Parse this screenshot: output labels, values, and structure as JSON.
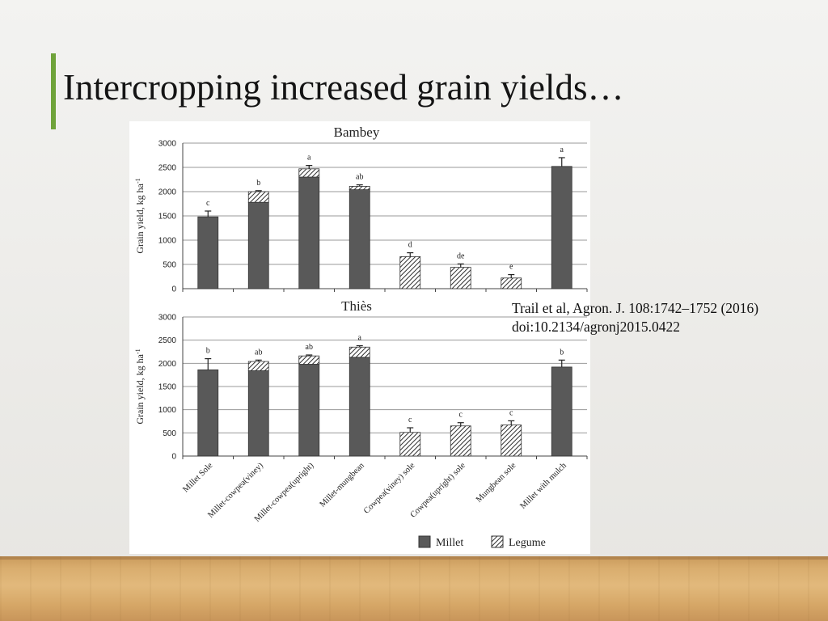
{
  "slide": {
    "title": "Intercropping increased grain yields…",
    "citation_line1": "Trail et al, Agron. J. 108:1742–1752 (2016)",
    "citation_line2": "doi:10.2134/agronj2015.0422",
    "accent_color": "#6fa33a"
  },
  "chart_data": [
    {
      "type": "bar",
      "stacked": true,
      "title": "Bambey",
      "ylabel": "Grain yield, kg ha-1",
      "ylim": [
        0,
        3000
      ],
      "yticks": [
        0,
        500,
        1000,
        1500,
        2000,
        2500,
        3000
      ],
      "grid": true,
      "categories": [
        "Millet Sole",
        "Millet-cowpea(viney)",
        "Millet-cowpea(upright)",
        "Millet-mungbean",
        "Cowpea(viney) sole",
        "Cowpea(upright) sole",
        "Mungbean sole",
        "Millet with mulch"
      ],
      "series": [
        {
          "name": "Millet",
          "values": [
            1480,
            1780,
            2300,
            2040,
            0,
            0,
            0,
            2520
          ]
        },
        {
          "name": "Legume",
          "values": [
            0,
            220,
            170,
            70,
            660,
            440,
            220,
            0
          ]
        }
      ],
      "error": [
        120,
        20,
        70,
        30,
        80,
        70,
        70,
        180
      ],
      "letters": [
        "c",
        "b",
        "a",
        "ab",
        "d",
        "de",
        "e",
        "a"
      ]
    },
    {
      "type": "bar",
      "stacked": true,
      "title": "Thiès",
      "ylabel": "Grain yield, kg ha-1",
      "ylim": [
        0,
        3000
      ],
      "yticks": [
        0,
        500,
        1000,
        1500,
        2000,
        2500,
        3000
      ],
      "grid": true,
      "categories": [
        "Millet Sole",
        "Millet-cowpea(viney)",
        "Millet-cowpea(upright)",
        "Millet-mungbean",
        "Cowpea(viney) sole",
        "Cowpea(upright) sole",
        "Mungbean sole",
        "Millet with mulch"
      ],
      "series": [
        {
          "name": "Millet",
          "values": [
            1860,
            1840,
            1980,
            2130,
            0,
            0,
            0,
            1920
          ]
        },
        {
          "name": "Legume",
          "values": [
            0,
            200,
            180,
            220,
            510,
            650,
            670,
            0
          ]
        }
      ],
      "error": [
        240,
        30,
        20,
        30,
        100,
        70,
        90,
        150
      ],
      "letters": [
        "b",
        "ab",
        "ab",
        "a",
        "c",
        "c",
        "c",
        "b"
      ]
    }
  ],
  "x_tick_labels": [
    "Millet Sole",
    "Millet-cowpea(viney)",
    "Millet-cowpea(upright)",
    "Millet-mungbean",
    "Cowpea(viney) sole",
    "Cowpea(upright) sole",
    "Mungbean sole",
    "Millet with mulch"
  ],
  "legend": {
    "placement": "bottom-right",
    "items": [
      {
        "label": "Millet",
        "fill": "solid"
      },
      {
        "label": "Legume",
        "fill": "hatched"
      }
    ]
  },
  "colors": {
    "millet": "#595959",
    "legume_hatch": "#3a3a3a",
    "grid": "#9a9a9a"
  }
}
